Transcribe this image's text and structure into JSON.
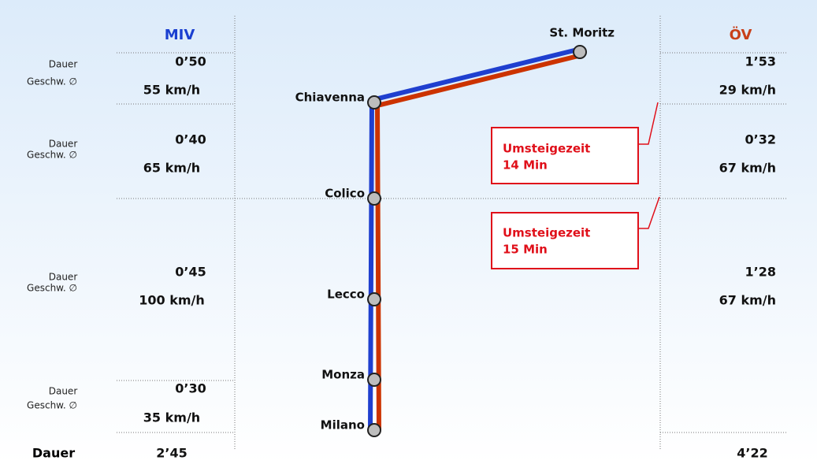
{
  "header": {
    "miv": "MIV",
    "oev": "ÖV"
  },
  "stations": [
    "St. Moritz",
    "Chiavenna",
    "Colico",
    "Lecco",
    "Monza",
    "Milano"
  ],
  "segments": [
    {
      "dauer": "Dauer",
      "speed_label": "Geschw. ∅",
      "miv_time": "0’50",
      "miv_speed": "55 km/h",
      "oev_time": "1’53",
      "oev_speed": "29 km/h"
    },
    {
      "dauer": "Dauer",
      "speed_label": "Geschw. ∅",
      "miv_time": "0’40",
      "miv_speed": "65 km/h",
      "oev_time": "0’32",
      "oev_speed": "67 km/h"
    },
    {
      "dauer": "Dauer",
      "speed_label": "Geschw. ∅",
      "miv_time": "0’45",
      "miv_speed": "100 km/h",
      "oev_time": "1’28",
      "oev_speed": "67 km/h"
    },
    {
      "dauer": "Dauer",
      "speed_label": "Geschw. ∅",
      "miv_time": "0’30",
      "miv_speed": "35 km/h"
    }
  ],
  "transfers": [
    {
      "line1": "Umsteigezeit",
      "line2": "14 Min"
    },
    {
      "line1": "Umsteigezeit",
      "line2": "15 Min"
    }
  ],
  "total": {
    "label": "Dauer",
    "miv": "2’45",
    "oev": "4’22"
  }
}
